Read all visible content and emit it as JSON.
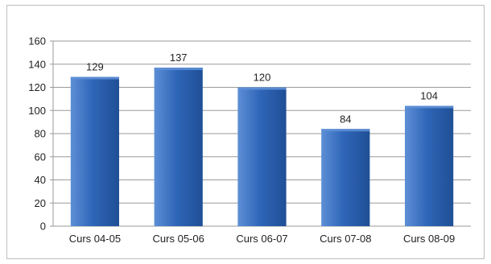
{
  "chart_data": {
    "type": "bar",
    "categories": [
      "Curs 04-05",
      "Curs 05-06",
      "Curs 06-07",
      "Curs 07-08",
      "Curs 08-09"
    ],
    "values": [
      129,
      137,
      120,
      84,
      104
    ],
    "ylim": [
      0,
      160
    ],
    "yticks": [
      0,
      20,
      40,
      60,
      80,
      100,
      120,
      140,
      160
    ],
    "grid": true,
    "data_labels": true,
    "colors": {
      "bar": "#2f66b8",
      "bar_light": "#5d8fd6",
      "bar_dark": "#1f4f96",
      "grid": "#9a9a9a"
    }
  }
}
